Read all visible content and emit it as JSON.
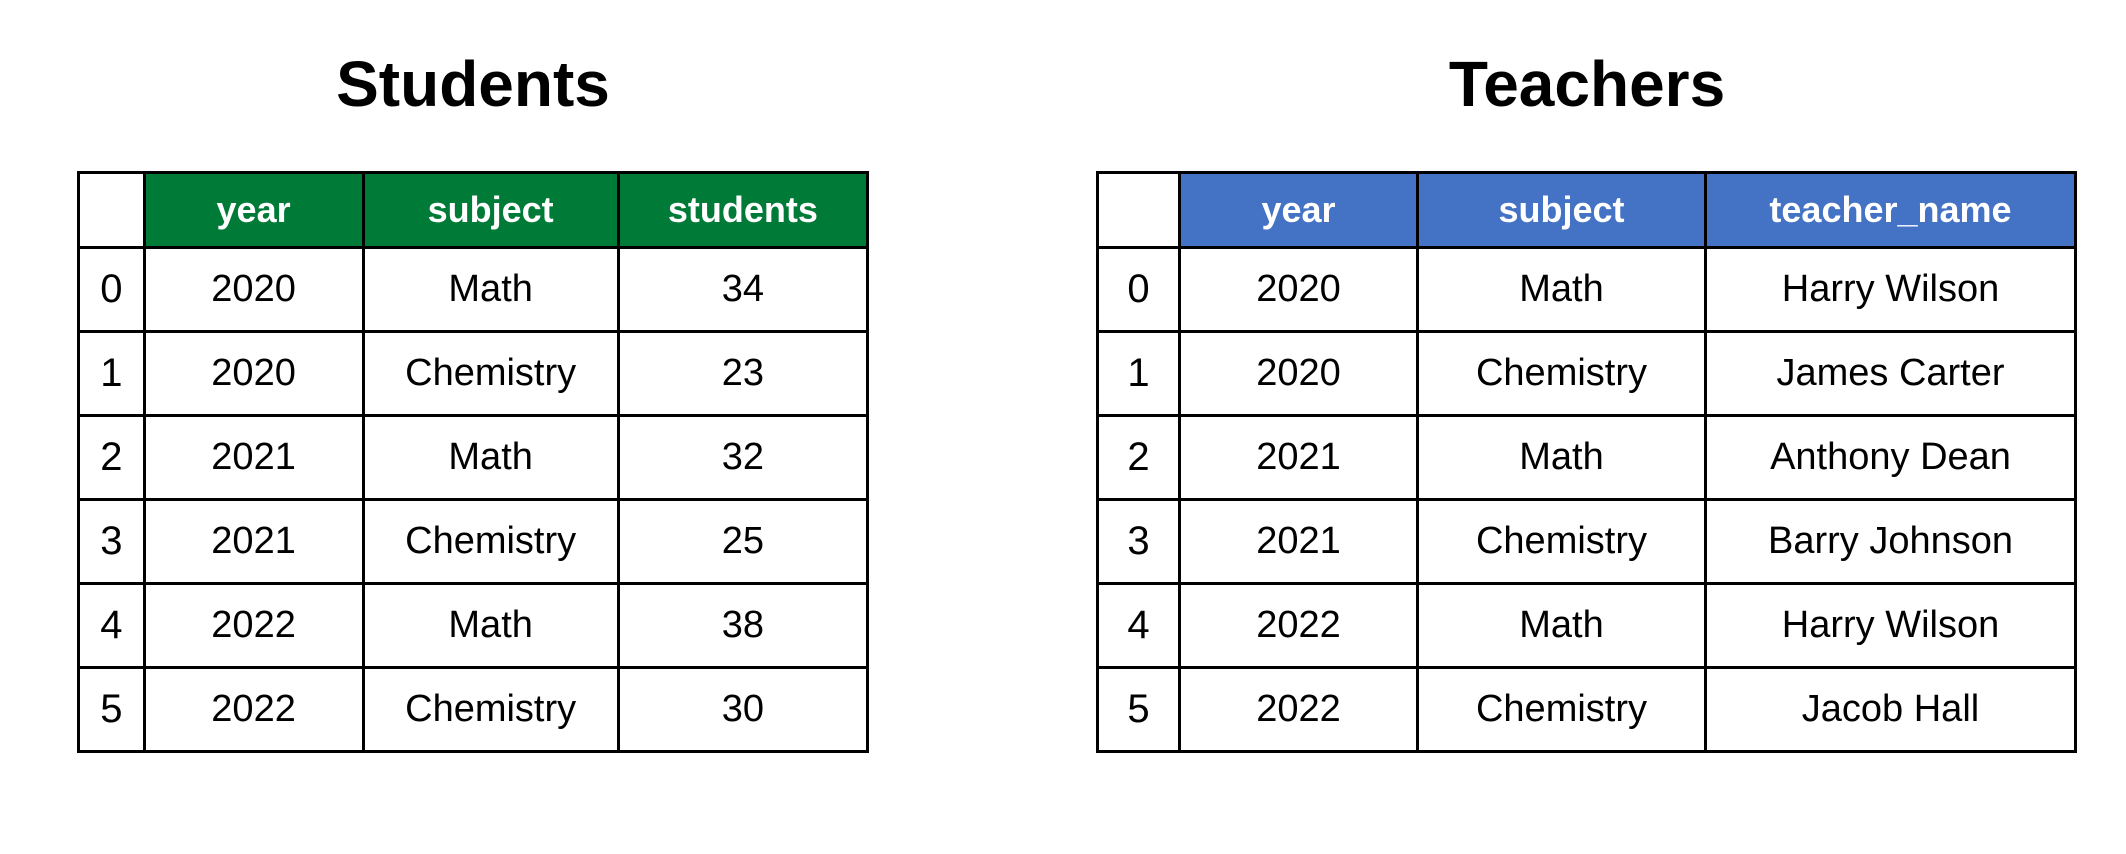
{
  "students": {
    "title": "Students",
    "header_color": "#007a37",
    "columns": [
      "year",
      "subject",
      "students"
    ],
    "rows": [
      {
        "index": "0",
        "year": "2020",
        "subject": "Math",
        "students": "34"
      },
      {
        "index": "1",
        "year": "2020",
        "subject": "Chemistry",
        "students": "23"
      },
      {
        "index": "2",
        "year": "2021",
        "subject": "Math",
        "students": "32"
      },
      {
        "index": "3",
        "year": "2021",
        "subject": "Chemistry",
        "students": "25"
      },
      {
        "index": "4",
        "year": "2022",
        "subject": "Math",
        "students": "38"
      },
      {
        "index": "5",
        "year": "2022",
        "subject": "Chemistry",
        "students": "30"
      }
    ]
  },
  "teachers": {
    "title": "Teachers",
    "header_color": "#4472c4",
    "columns": [
      "year",
      "subject",
      "teacher_name"
    ],
    "rows": [
      {
        "index": "0",
        "year": "2020",
        "subject": "Math",
        "teacher_name": "Harry Wilson"
      },
      {
        "index": "1",
        "year": "2020",
        "subject": "Chemistry",
        "teacher_name": "James Carter"
      },
      {
        "index": "2",
        "year": "2021",
        "subject": "Math",
        "teacher_name": "Anthony Dean"
      },
      {
        "index": "3",
        "year": "2021",
        "subject": "Chemistry",
        "teacher_name": "Barry Johnson"
      },
      {
        "index": "4",
        "year": "2022",
        "subject": "Math",
        "teacher_name": "Harry Wilson"
      },
      {
        "index": "5",
        "year": "2022",
        "subject": "Chemistry",
        "teacher_name": "Jacob Hall"
      }
    ]
  }
}
